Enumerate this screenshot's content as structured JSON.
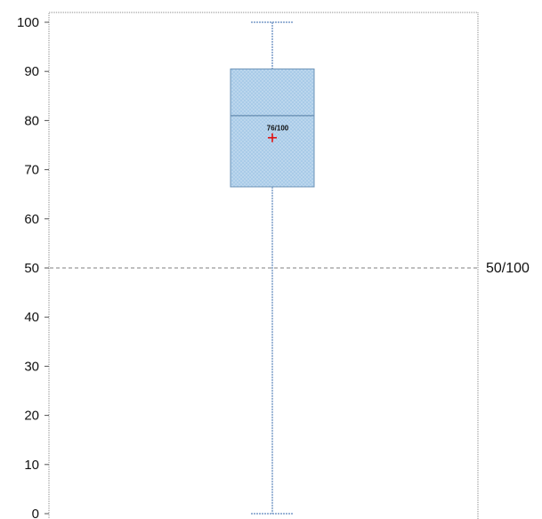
{
  "chart_data": {
    "type": "boxplot",
    "ylim": [
      0,
      100
    ],
    "y_ticks": [
      "0",
      "10",
      "20",
      "30",
      "40",
      "50",
      "60",
      "70",
      "80",
      "90",
      "100"
    ],
    "box": {
      "min": 0,
      "q1": 66.5,
      "median": 81,
      "q3": 90.5,
      "max": 100,
      "mean": 76.5,
      "mean_label": "76/100"
    },
    "reference_line": {
      "value": 50,
      "label": "50/100"
    },
    "grid": false,
    "colors": {
      "box_fill": "#a9cbe8",
      "box_stroke": "#6f95b8",
      "whisker": "#7a9cc8",
      "mean_marker": "#e01010",
      "reference_line": "#aaaaaa",
      "frame": "#888888"
    }
  }
}
